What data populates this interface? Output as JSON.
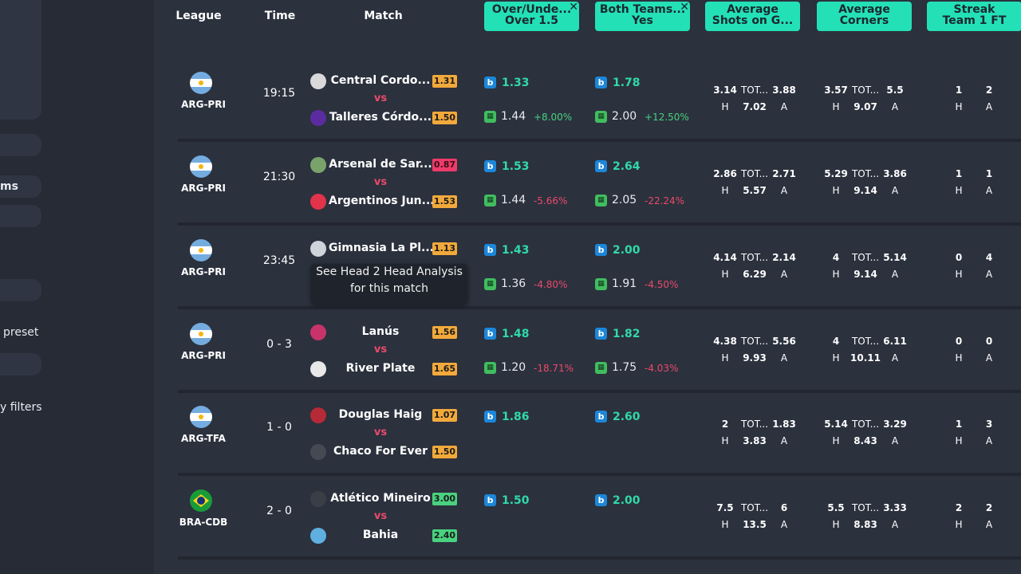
{
  "sidebar": {
    "items": [
      {
        "label": "ms"
      },
      {
        "label": "preset"
      },
      {
        "label": "y filters"
      }
    ]
  },
  "table": {
    "headers": {
      "league": "League",
      "time": "Time",
      "match": "Match"
    },
    "filter_columns": [
      {
        "line1": "Over/Unde...",
        "line2": "Over 1.5",
        "close": "✕"
      },
      {
        "line1": "Both Teams...",
        "line2": "Yes",
        "close": "✕"
      },
      {
        "line1": "Average",
        "line2": "Shots on G..."
      },
      {
        "line1": "Average",
        "line2": "Corners"
      },
      {
        "line1": "Streak",
        "line2": "Team 1 FT"
      }
    ],
    "rows": [
      {
        "flag": "arg",
        "league": "ARG-PRI",
        "time": "19:15",
        "home": "Central Cordo...",
        "home_badge": "1.31",
        "home_badge_color": "orange",
        "away": "Talleres Córdo...",
        "away_badge": "1.50",
        "away_badge_color": "orange",
        "vs": "vs",
        "ou_bk": "1.33",
        "ou_alt": "1.44",
        "ou_pct": "+8.00%",
        "ou_pct_sign": "pos",
        "bt_bk": "1.78",
        "bt_alt": "2.00",
        "bt_pct": "+12.50%",
        "bt_pct_sign": "pos",
        "shots": {
          "h": "3.14",
          "tot": "TOT...",
          "a": "3.88",
          "hl": "H",
          "total": "7.02",
          "al": "A"
        },
        "corners": {
          "h": "3.57",
          "tot": "TOT...",
          "a": "5.5",
          "hl": "H",
          "total": "9.07",
          "al": "A"
        },
        "streak": {
          "h": "1",
          "a": "2",
          "hl": "H",
          "al": "A"
        }
      },
      {
        "flag": "arg",
        "league": "ARG-PRI",
        "time": "21:30",
        "home": "Arsenal de Sar...",
        "home_badge": "0.87",
        "home_badge_color": "red",
        "away": "Argentinos Jun...",
        "away_badge": "1.53",
        "away_badge_color": "orange",
        "vs": "vs",
        "ou_bk": "1.53",
        "ou_alt": "1.44",
        "ou_pct": "-5.66%",
        "ou_pct_sign": "neg",
        "bt_bk": "2.64",
        "bt_alt": "2.05",
        "bt_pct": "-22.24%",
        "bt_pct_sign": "neg",
        "shots": {
          "h": "2.86",
          "tot": "TOT...",
          "a": "2.71",
          "hl": "H",
          "total": "5.57",
          "al": "A"
        },
        "corners": {
          "h": "5.29",
          "tot": "TOT...",
          "a": "3.86",
          "hl": "H",
          "total": "9.14",
          "al": "A"
        },
        "streak": {
          "h": "1",
          "a": "1",
          "hl": "H",
          "al": "A"
        }
      },
      {
        "flag": "arg",
        "league": "ARG-PRI",
        "time": "23:45",
        "home": "Gimnasia La Pl...",
        "home_badge": "1.13",
        "home_badge_color": "orange",
        "away": "",
        "away_badge": "",
        "away_badge_color": "none",
        "vs": "",
        "ou_bk": "1.43",
        "ou_alt": "1.36",
        "ou_pct": "-4.80%",
        "ou_pct_sign": "neg",
        "bt_bk": "2.00",
        "bt_alt": "1.91",
        "bt_pct": "-4.50%",
        "bt_pct_sign": "neg",
        "shots": {
          "h": "4.14",
          "tot": "TOT...",
          "a": "2.14",
          "hl": "H",
          "total": "6.29",
          "al": "A"
        },
        "corners": {
          "h": "4",
          "tot": "TOT...",
          "a": "5.14",
          "hl": "H",
          "total": "9.14",
          "al": "A"
        },
        "streak": {
          "h": "0",
          "a": "4",
          "hl": "H",
          "al": "A"
        }
      },
      {
        "flag": "arg",
        "league": "ARG-PRI",
        "time": "0 - 3",
        "home": "Lanús",
        "home_badge": "1.56",
        "home_badge_color": "orange",
        "away": "River Plate",
        "away_badge": "1.65",
        "away_badge_color": "orange",
        "vs": "vs",
        "ou_bk": "1.48",
        "ou_alt": "1.20",
        "ou_pct": "-18.71%",
        "ou_pct_sign": "neg",
        "bt_bk": "1.82",
        "bt_alt": "1.75",
        "bt_pct": "-4.03%",
        "bt_pct_sign": "neg",
        "shots": {
          "h": "4.38",
          "tot": "TOT...",
          "a": "5.56",
          "hl": "H",
          "total": "9.93",
          "al": "A"
        },
        "corners": {
          "h": "4",
          "tot": "TOT...",
          "a": "6.11",
          "hl": "H",
          "total": "10.11",
          "al": "A"
        },
        "streak": {
          "h": "0",
          "a": "0",
          "hl": "H",
          "al": "A"
        }
      },
      {
        "flag": "arg",
        "league": "ARG-TFA",
        "time": "1 - 0",
        "home": "Douglas Haig",
        "home_badge": "1.07",
        "home_badge_color": "orange",
        "away": "Chaco For Ever",
        "away_badge": "1.50",
        "away_badge_color": "orange",
        "vs": "vs",
        "ou_bk": "1.86",
        "ou_alt": "",
        "ou_pct": "",
        "ou_pct_sign": "pos",
        "bt_bk": "2.60",
        "bt_alt": "",
        "bt_pct": "",
        "bt_pct_sign": "pos",
        "shots": {
          "h": "2",
          "tot": "TOT...",
          "a": "1.83",
          "hl": "H",
          "total": "3.83",
          "al": "A"
        },
        "corners": {
          "h": "5.14",
          "tot": "TOT...",
          "a": "3.29",
          "hl": "H",
          "total": "8.43",
          "al": "A"
        },
        "streak": {
          "h": "1",
          "a": "3",
          "hl": "H",
          "al": "A"
        }
      },
      {
        "flag": "bra",
        "league": "BRA-CDB",
        "time": "2 - 0",
        "home": "Atlético Mineiro",
        "home_badge": "3.00",
        "home_badge_color": "green",
        "away": "Bahia",
        "away_badge": "2.40",
        "away_badge_color": "green",
        "vs": "vs",
        "ou_bk": "1.50",
        "ou_alt": "",
        "ou_pct": "",
        "ou_pct_sign": "pos",
        "bt_bk": "2.00",
        "bt_alt": "",
        "bt_pct": "",
        "bt_pct_sign": "pos",
        "shots": {
          "h": "7.5",
          "tot": "TOT...",
          "a": "6",
          "hl": "H",
          "total": "13.5",
          "al": "A"
        },
        "corners": {
          "h": "5.5",
          "tot": "TOT...",
          "a": "3.33",
          "hl": "H",
          "total": "8.83",
          "al": "A"
        },
        "streak": {
          "h": "2",
          "a": "2",
          "hl": "H",
          "al": "A"
        }
      }
    ]
  },
  "tooltip": {
    "line1": "See Head 2 Head Analysis",
    "line2": "for this match"
  },
  "icons": {
    "bookmaker_primary": "b",
    "bookmaker_secondary": "▦"
  },
  "colors": {
    "accent": "#24e0b6",
    "positive": "#49d17f",
    "negative": "#ea4a6b",
    "badge": "#f2a93b"
  }
}
